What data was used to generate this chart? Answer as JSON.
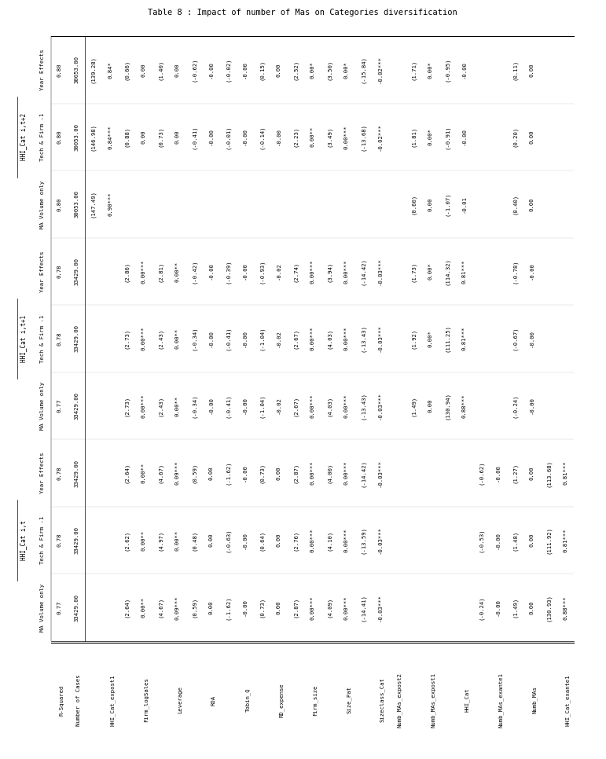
{
  "title": "Table 8 : Impact of number of Mas on Categories diversification",
  "col_group_labels": [
    "HHI_Cat i,t",
    "HHI_Cat i,t+1",
    "HHI_Cat i,t+2"
  ],
  "col_group_spans": [
    3,
    3,
    3
  ],
  "col_sub_labels": [
    "MA Volume only",
    "Tech & Firm -1",
    "Year Effects",
    "MA Volume only",
    "Tech & Firm -1",
    "Year Effects",
    "MA Volume only",
    "Tech & Firm -1",
    "Year Effects"
  ],
  "row_labels": [
    "HHI_Cat_exante1",
    "Numb_MAs",
    "Numb_MAs_exante1",
    "HHI_Cat",
    "Numb_MAs_expost1",
    "Numb_MAs_expost2",
    "Sizeclass_Cat",
    "Size_Pat",
    "Firm_size",
    "RD_expense",
    "Tobin_Q",
    "ROA",
    "Leverage",
    "Firm_logSales",
    "HHI_Cat_expost1",
    "Number of Cases",
    "R-Squared"
  ],
  "data_rows": [
    {
      "label": "HHI_Cat_exante1",
      "vals": [
        "0.88***",
        "0.81***",
        "0.81***",
        "",
        "",
        "",
        "",
        "",
        ""
      ],
      "tvals": [
        "(130.93)",
        "(111.92)",
        "(113.68)",
        "",
        "",
        "",
        "",
        "",
        ""
      ]
    },
    {
      "label": "Numb_MAs",
      "vals": [
        "0.00",
        "0.00",
        "0.00",
        "-0.00",
        "-0.00",
        "-0.00",
        "0.00",
        "0.00",
        "0.00"
      ],
      "tvals": [
        "(1.49)",
        "(1.48)",
        "(1.27)",
        "(-0.24)",
        "(-0.67)",
        "(-0.78)",
        "(0.40)",
        "(0.20)",
        "(0.11)"
      ]
    },
    {
      "label": "Numb_MAs_exante1",
      "vals": [
        "-0.00",
        "-0.00",
        "-0.00",
        "",
        "",
        "",
        "",
        "",
        ""
      ],
      "tvals": [
        "(-0.24)",
        "(-0.53)",
        "(-0.62)",
        "",
        "",
        "",
        "",
        "",
        ""
      ]
    },
    {
      "label": "HHI_Cat",
      "vals": [
        "",
        "",
        "",
        "0.88***",
        "0.81***",
        "0.81***",
        "-0.01",
        "-0.00",
        "-0.00"
      ],
      "tvals": [
        "",
        "",
        "",
        "(130.94)",
        "(111.25)",
        "(114.32)",
        "(-1.07)",
        "(-0.91)",
        "(-0.95)"
      ]
    },
    {
      "label": "Numb_MAs_expost1",
      "vals": [
        "",
        "",
        "",
        "0.00",
        "0.00*",
        "0.00*",
        "0.00",
        "0.00*",
        "0.00*"
      ],
      "tvals": [
        "",
        "",
        "",
        "(1.49)",
        "(1.92)",
        "(1.73)",
        "(0.60)",
        "(1.81)",
        "(1.71)"
      ]
    },
    {
      "label": "Numb_MAs_expost2",
      "vals": [
        "",
        "",
        "",
        "",
        "",
        "",
        "",
        "",
        ""
      ],
      "tvals": [
        "",
        "",
        "",
        "",
        "",
        "",
        "",
        "",
        ""
      ]
    },
    {
      "label": "Sizeclass_Cat",
      "vals": [
        "-0.03***",
        "-0.03***",
        "-0.03***",
        "-0.03***",
        "-0.03***",
        "-0.03***",
        "",
        "-0.02***",
        "-0.02***"
      ],
      "tvals": [
        "(-14.41)",
        "(-13.59)",
        "(-14.42)",
        "(-13.43)",
        "(-13.43)",
        "(-14.42)",
        "",
        "(-13.68)",
        "(-15.84)"
      ]
    },
    {
      "label": "Size_Pat",
      "vals": [
        "0.00***",
        "0.00***",
        "0.00***",
        "0.00***",
        "0.00***",
        "0.00***",
        "",
        "0.00***",
        "0.00*"
      ],
      "tvals": [
        "(4.09)",
        "(4.10)",
        "(4.00)",
        "(4.03)",
        "(4.03)",
        "(3.94)",
        "",
        "(3.49)",
        "(3.50)"
      ]
    },
    {
      "label": "Firm_size",
      "vals": [
        "0.00***",
        "0.00***",
        "0.00***",
        "0.00***",
        "0.00***",
        "0.00***",
        "",
        "0.00**",
        "0.00*"
      ],
      "tvals": [
        "(2.87)",
        "(2.76)",
        "(2.87)",
        "(2.67)",
        "(2.67)",
        "(2.74)",
        "",
        "(2.23)",
        "(2.52)"
      ]
    },
    {
      "label": "RD_expense",
      "vals": [
        "0.00",
        "0.00",
        "0.00",
        "-0.02",
        "-0.02",
        "-0.02",
        "",
        "-0.00",
        "0.00"
      ],
      "tvals": [
        "(0.73)",
        "(0.64)",
        "(0.73)",
        "(-1.04)",
        "(-1.04)",
        "(-0.93)",
        "",
        "(-0.14)",
        "(0.15)"
      ]
    },
    {
      "label": "Tobin_Q",
      "vals": [
        "-0.00",
        "-0.00",
        "-0.00",
        "-0.00",
        "-0.00",
        "-0.00",
        "",
        "-0.00",
        "-0.00"
      ],
      "tvals": [
        "(-1.62)",
        "(-0.63)",
        "(-1.62)",
        "(-0.41)",
        "(-0.41)",
        "(-0.39)",
        "",
        "(-0.01)",
        "(-0.02)"
      ]
    },
    {
      "label": "ROA",
      "vals": [
        "0.00",
        "0.00",
        "0.00",
        "-0.00",
        "-0.00",
        "-0.00",
        "",
        "-0.00",
        "-0.00"
      ],
      "tvals": [
        "(0.59)",
        "(0.48)",
        "(0.59)",
        "(-0.34)",
        "(-0.34)",
        "(-0.42)",
        "",
        "(-0.41)",
        "(-0.62)"
      ]
    },
    {
      "label": "Leverage",
      "vals": [
        "0.09***",
        "0.00**",
        "0.09***",
        "0.00**",
        "0.00**",
        "0.00**",
        "",
        "0.00",
        "0.00"
      ],
      "tvals": [
        "(4.67)",
        "(4.97)",
        "(4.67)",
        "(2.43)",
        "(2.43)",
        "(2.81)",
        "",
        "(0.73)",
        "(1.40)"
      ]
    },
    {
      "label": "Firm_logSales",
      "vals": [
        "0.00**",
        "0.00**",
        "0.00**",
        "0.00***",
        "0.00***",
        "0.00***",
        "",
        "0.00",
        "0.00"
      ],
      "tvals": [
        "(2.64)",
        "(2.62)",
        "(2.64)",
        "(2.73)",
        "(2.73)",
        "(2.86)",
        "",
        "(0.88)",
        "(0.66)"
      ]
    },
    {
      "label": "HHI_Cat_expost1",
      "vals": [
        "",
        "",
        "",
        "",
        "",
        "",
        "0.90***",
        "0.84***",
        "0.84*"
      ],
      "tvals": [
        "",
        "",
        "",
        "",
        "",
        "",
        "(147.49)",
        "(146.98)",
        "(139.28)"
      ]
    },
    {
      "label": "Number of Cases",
      "vals": [
        "33429.00",
        "33429.00",
        "33429.00",
        "33429.00",
        "33429.00",
        "33429.00",
        "30053.00",
        "30053.00",
        "30053.00"
      ],
      "tvals": [
        "",
        "",
        "",
        "",
        "",
        "",
        "",
        "",
        ""
      ]
    },
    {
      "label": "R-Squared",
      "vals": [
        "0.77",
        "0.78",
        "0.78",
        "0.77",
        "0.78",
        "0.78",
        "0.80",
        "0.80",
        "0.80"
      ],
      "tvals": [
        "",
        "",
        "",
        "",
        "",
        "",
        "",
        "",
        ""
      ]
    }
  ],
  "n_cols": 9,
  "background": "#ffffff",
  "text_color": "#000000",
  "line_color": "#000000",
  "font_size": 5.2,
  "title_font_size": 7.5
}
